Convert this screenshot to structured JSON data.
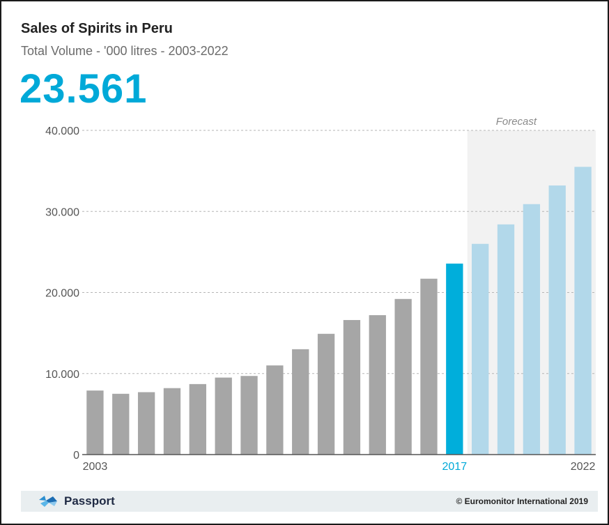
{
  "header": {
    "title": "Sales of Spirits in Peru",
    "subtitle": "Total Volume - '000 litres - 2003-2022",
    "highlight_value": "23.561"
  },
  "colors": {
    "historic": "#a6a6a6",
    "current": "#00aedb",
    "forecast": "#b2d8ea",
    "forecast_band": "#f2f2f2",
    "accent": "#00a9d8"
  },
  "chart_data": {
    "type": "bar",
    "title": "Sales of Spirits in Peru",
    "subtitle": "Total Volume - '000 litres - 2003-2022",
    "xlabel": "",
    "ylabel": "",
    "x_tick_labels": [
      {
        "year": 2003,
        "label": "2003"
      },
      {
        "year": 2017,
        "label": "2017"
      },
      {
        "year": 2022,
        "label": "2022"
      }
    ],
    "y_ticks": [
      0,
      10000,
      20000,
      30000,
      40000
    ],
    "y_tick_labels": [
      "0",
      "10.000",
      "20.000",
      "30.000",
      "40.000"
    ],
    "ylim": [
      0,
      40000
    ],
    "grid": true,
    "forecast_label": "Forecast",
    "forecast_start_year": 2018,
    "current_year": 2017,
    "categories": [
      2003,
      2004,
      2005,
      2006,
      2007,
      2008,
      2009,
      2010,
      2011,
      2012,
      2013,
      2014,
      2015,
      2016,
      2017,
      2018,
      2019,
      2020,
      2021,
      2022
    ],
    "values": [
      7900,
      7500,
      7700,
      8200,
      8700,
      9500,
      9700,
      11000,
      13000,
      14900,
      16600,
      17200,
      19200,
      21700,
      23561,
      26000,
      28400,
      30900,
      33200,
      35500
    ]
  },
  "footer": {
    "brand": "Passport",
    "copyright": "© Euromonitor International 2019"
  }
}
